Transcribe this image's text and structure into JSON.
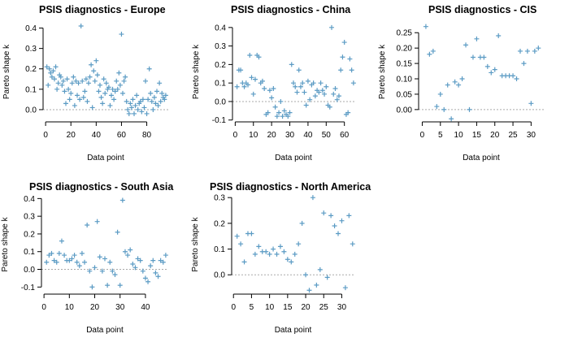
{
  "style": {
    "marker_color": "#5b9bc4",
    "zero_line_color": "#aaaaaa",
    "marker": "+"
  },
  "chart_data": [
    {
      "type": "scatter",
      "title": "PSIS diagnostics -  Europe",
      "xlabel": "Data point",
      "ylabel": "Pareto shape k",
      "xlim": [
        -2,
        97
      ],
      "ylim": [
        -0.06,
        0.43
      ],
      "xticks": [
        0,
        20,
        40,
        60,
        80
      ],
      "yticks": [
        0.0,
        0.1,
        0.2,
        0.3,
        0.4
      ],
      "ytick_labels": [
        "0.0",
        "0.1",
        "0.2",
        "0.3",
        "0.4"
      ],
      "hline": 0,
      "y": [
        0.21,
        0.12,
        0.2,
        0.18,
        0.16,
        0.19,
        0.15,
        0.21,
        0.1,
        0.13,
        0.17,
        0.16,
        0.12,
        0.14,
        0.09,
        0.03,
        0.15,
        0.1,
        0.05,
        0.08,
        0.13,
        0.16,
        0.02,
        0.14,
        0.07,
        0.13,
        0.05,
        0.41,
        0.14,
        0.06,
        0.09,
        0.15,
        0.04,
        0.13,
        0.16,
        0.22,
        0.01,
        0.19,
        0.14,
        0.24,
        0.17,
        0.09,
        0.12,
        0.06,
        0.03,
        0.15,
        0.08,
        0.13,
        0.1,
        0.11,
        0.02,
        0.07,
        0.1,
        0.05,
        0.09,
        0.14,
        0.1,
        0.18,
        0.12,
        0.37,
        0.08,
        0.14,
        0.16,
        0.04,
        0.0,
        -0.02,
        0.03,
        0.01,
        0.05,
        -0.02,
        0.02,
        0.07,
        0.0,
        0.03,
        0.04,
        -0.01,
        0.05,
        0.01,
        0.14,
        -0.02,
        0.05,
        0.2,
        0.08,
        0.04,
        0.0,
        0.06,
        0.03,
        0.09,
        0.02,
        0.13,
        0.04,
        0.08,
        0.06,
        0.05,
        0.07
      ]
    },
    {
      "type": "scatter",
      "title": "PSIS diagnostics -  China",
      "xlabel": "Data point",
      "ylabel": "Pareto shape k",
      "xlim": [
        -1.5,
        65.5
      ],
      "ylim": [
        -0.11,
        0.43
      ],
      "xticks": [
        0,
        10,
        20,
        30,
        40,
        50,
        60
      ],
      "yticks": [
        -0.1,
        0.0,
        0.1,
        0.2,
        0.3,
        0.4
      ],
      "ytick_labels": [
        "-0.1",
        "0.0",
        "0.1",
        "0.2",
        "0.3",
        "0.4"
      ],
      "hline": 0,
      "y": [
        0.08,
        0.17,
        0.17,
        0.1,
        0.08,
        0.1,
        0.09,
        0.25,
        0.13,
        0.04,
        0.12,
        0.25,
        0.24,
        0.1,
        0.11,
        0.07,
        -0.07,
        -0.06,
        0.06,
        0.02,
        0.07,
        -0.03,
        -0.08,
        -0.06,
        0.0,
        -0.08,
        -0.05,
        -0.07,
        -0.08,
        -0.06,
        0.2,
        0.1,
        0.08,
        0.05,
        0.17,
        0.08,
        0.1,
        0.05,
        -0.02,
        0.11,
        0.01,
        0.09,
        0.1,
        0.03,
        0.06,
        0.05,
        0.1,
        0.06,
        0.04,
        0.08,
        -0.02,
        -0.03,
        0.4,
        0.04,
        0.07,
        0.01,
        0.03,
        0.17,
        0.24,
        0.32,
        -0.07,
        -0.06,
        0.23,
        0.17,
        0.1
      ]
    },
    {
      "type": "scatter",
      "title": "PSIS diagnostics -  CIS",
      "xlabel": "Data point",
      "ylabel": "Pareto shape k",
      "xlim": [
        -1,
        33.5
      ],
      "ylim": [
        -0.04,
        0.285
      ],
      "xticks": [
        0,
        5,
        10,
        15,
        20,
        25,
        30
      ],
      "yticks": [
        0.0,
        0.05,
        0.1,
        0.15,
        0.2,
        0.25
      ],
      "ytick_labels": [
        "0.00",
        "0.05",
        "0.10",
        "0.15",
        "0.20",
        "0.25"
      ],
      "hline": 0,
      "y": [
        0.27,
        0.18,
        0.19,
        0.01,
        0.05,
        0.0,
        0.08,
        -0.03,
        0.09,
        0.08,
        0.1,
        0.21,
        0.0,
        0.17,
        0.23,
        0.17,
        0.17,
        0.14,
        0.12,
        0.13,
        0.24,
        0.11,
        0.11,
        0.11,
        0.11,
        0.1,
        0.19,
        0.15,
        0.19,
        0.02,
        0.19,
        0.2
      ]
    },
    {
      "type": "scatter",
      "title": "PSIS diagnostics -  South Asia",
      "xlabel": "Data point",
      "ylabel": "Pareto shape k",
      "xlim": [
        -1,
        49
      ],
      "ylim": [
        -0.14,
        0.42
      ],
      "xticks": [
        0,
        10,
        20,
        30,
        40
      ],
      "yticks": [
        -0.1,
        0.0,
        0.1,
        0.2,
        0.3,
        0.4
      ],
      "ytick_labels": [
        "-0.1",
        "0.0",
        "0.1",
        "0.2",
        "0.3",
        "0.4"
      ],
      "hline": 0,
      "y": [
        0.04,
        0.08,
        0.09,
        0.05,
        0.04,
        0.09,
        0.16,
        0.08,
        0.05,
        0.05,
        0.06,
        0.08,
        0.04,
        0.02,
        0.09,
        0.04,
        0.25,
        -0.01,
        -0.1,
        0.01,
        0.27,
        0.07,
        -0.01,
        0.06,
        -0.09,
        0.04,
        -0.01,
        -0.03,
        0.21,
        -0.09,
        0.39,
        0.1,
        0.08,
        0.11,
        0.03,
        0.01,
        0.06,
        0.05,
        -0.01,
        -0.05,
        -0.07,
        0.02,
        0.05,
        -0.02,
        -0.04,
        0.05,
        0.04,
        0.08
      ]
    },
    {
      "type": "scatter",
      "title": "PSIS diagnostics -  North America",
      "xlabel": "Data point",
      "ylabel": "Pareto shape k",
      "xlim": [
        -0.5,
        33.5
      ],
      "ylim": [
        -0.075,
        0.31
      ],
      "xticks": [
        0,
        5,
        10,
        15,
        20,
        25,
        30
      ],
      "yticks": [
        0.0,
        0.1,
        0.2,
        0.3
      ],
      "ytick_labels": [
        "0.0",
        "0.1",
        "0.2",
        "0.3"
      ],
      "hline": 0,
      "y": [
        0.15,
        0.12,
        0.05,
        0.16,
        0.16,
        0.08,
        0.11,
        0.09,
        0.09,
        0.08,
        0.1,
        0.08,
        0.11,
        0.09,
        0.06,
        0.05,
        0.08,
        0.12,
        0.2,
        0.0,
        -0.06,
        0.3,
        -0.04,
        0.02,
        0.24,
        -0.01,
        0.23,
        0.19,
        0.16,
        0.21,
        -0.05,
        0.23,
        0.12
      ]
    }
  ]
}
